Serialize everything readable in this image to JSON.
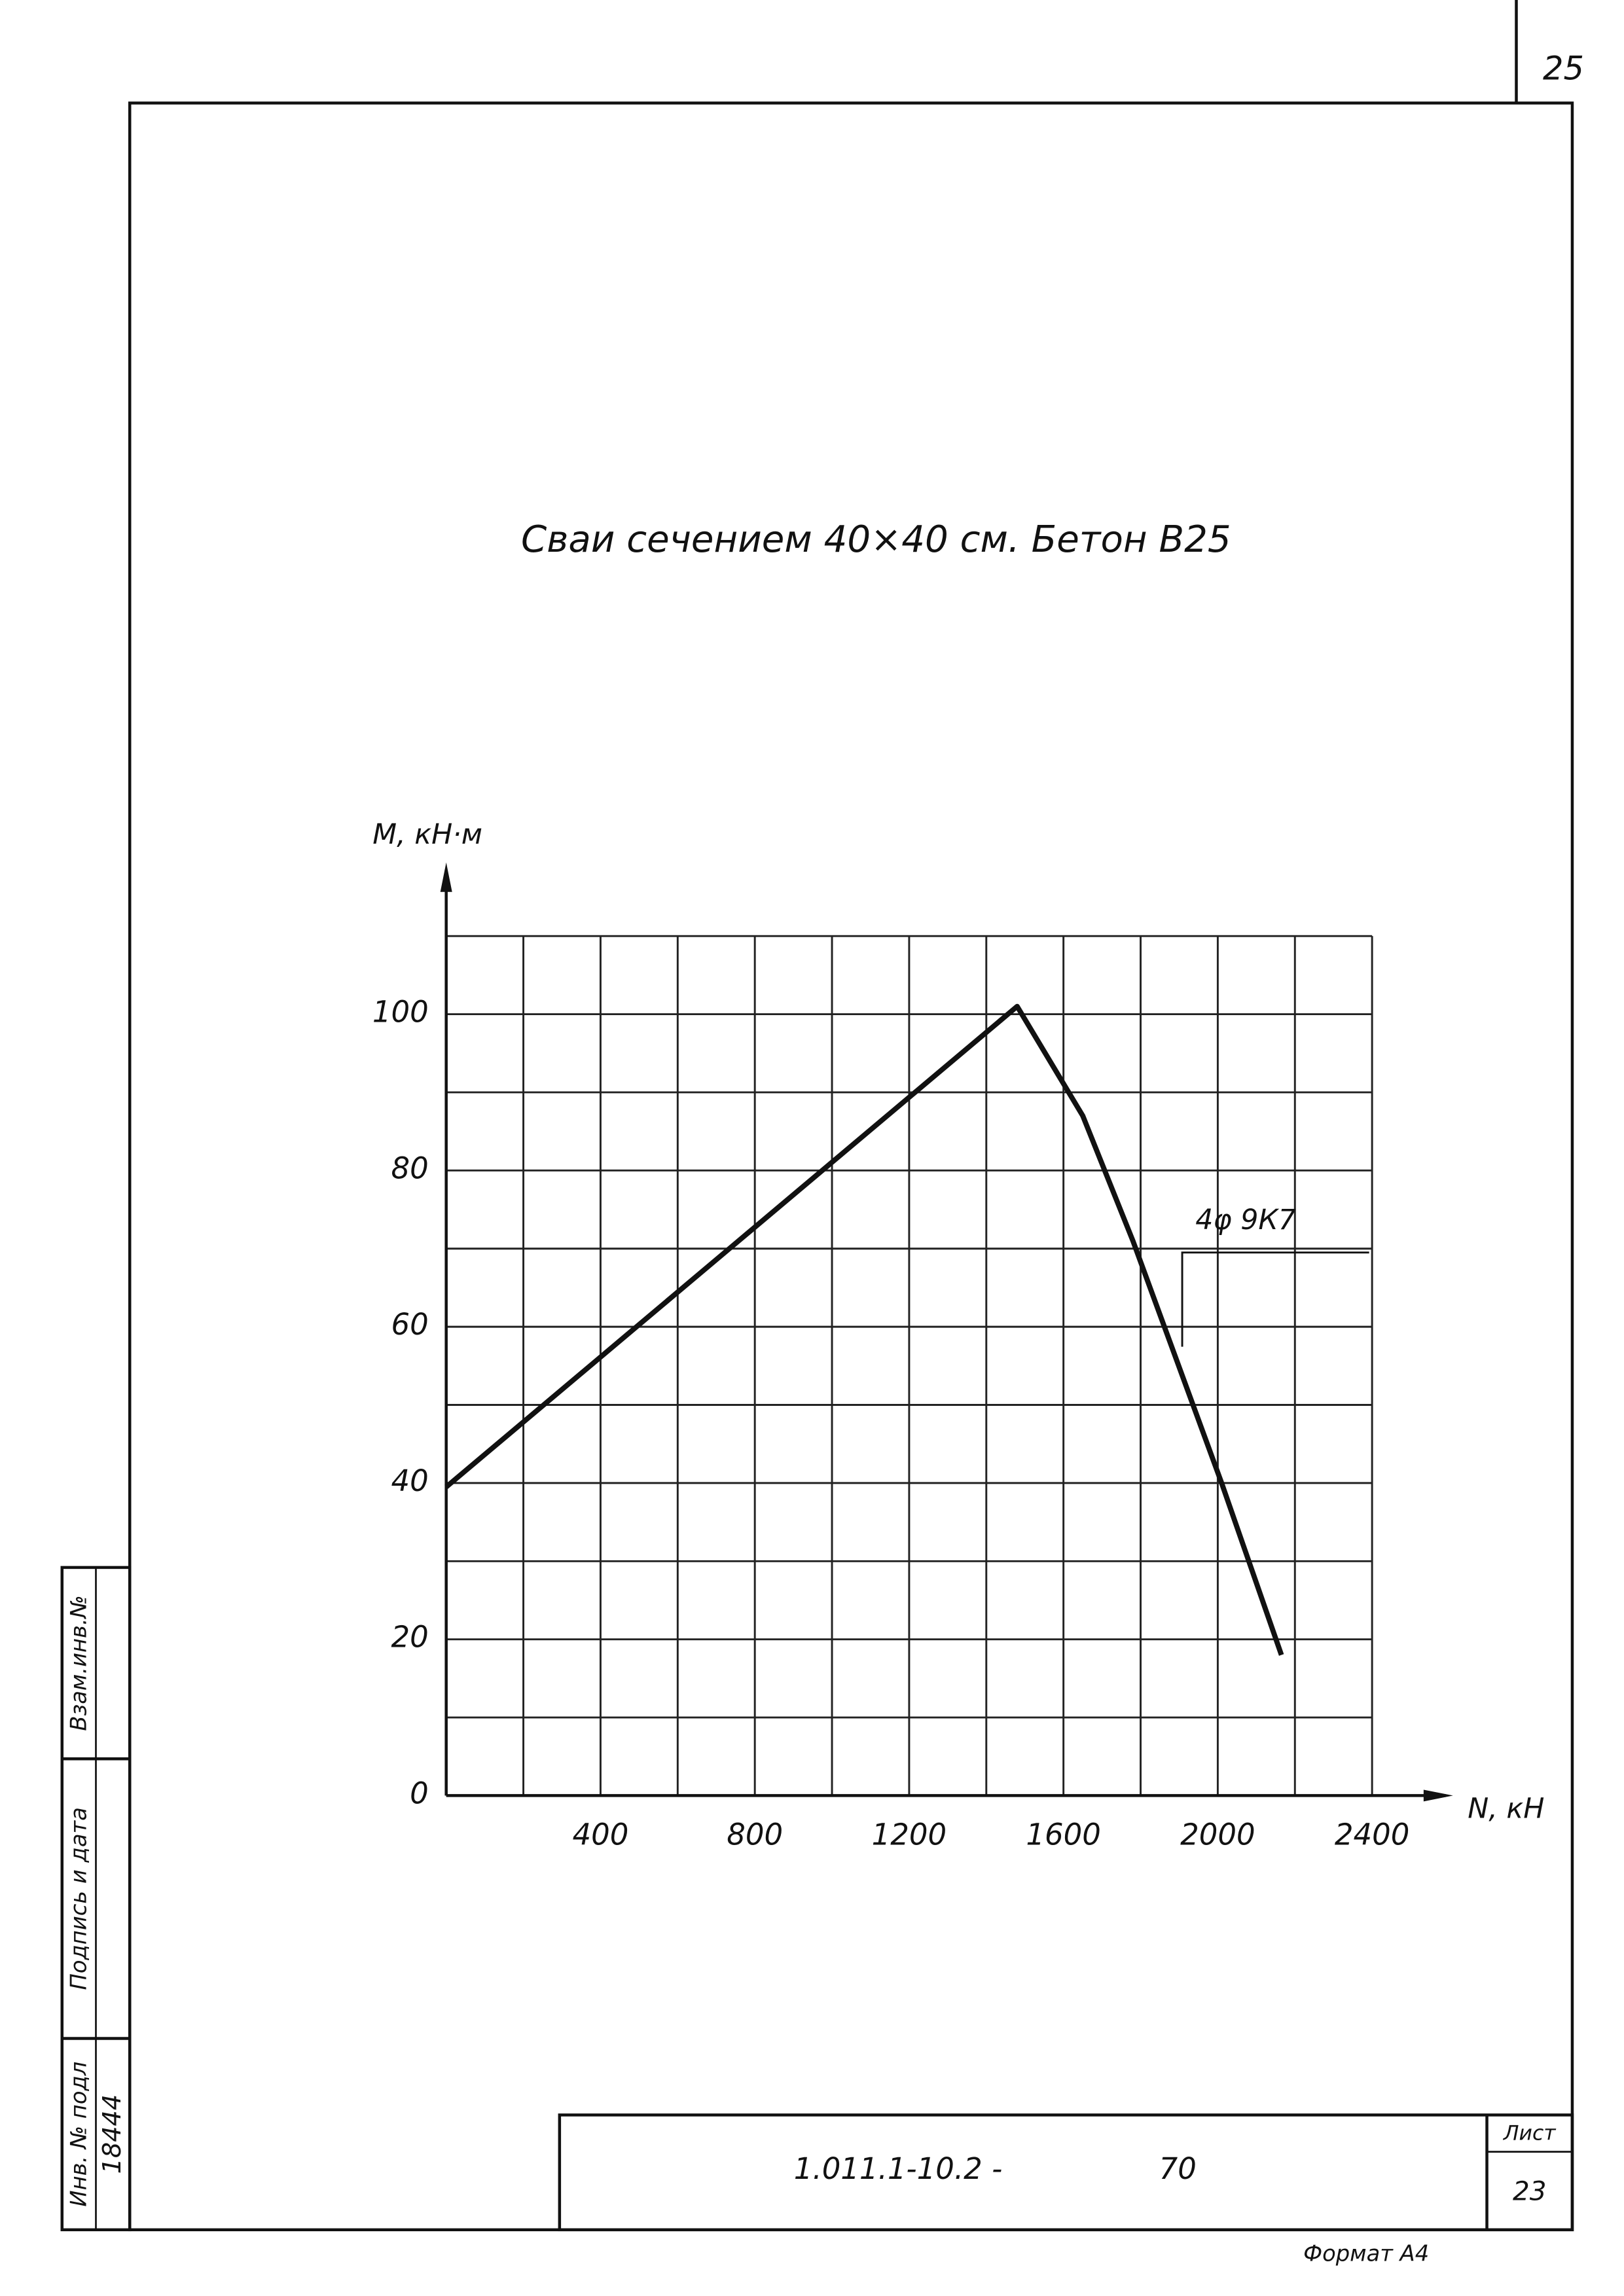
{
  "page_number": "25",
  "chart_data": {
    "type": "line",
    "title": "Сваи сечением 40×40 см. Бетон В25",
    "ylabel": "М, кН·м",
    "xlabel": "N, кН",
    "x": [
      0,
      1480,
      1650,
      1780,
      2010,
      2165
    ],
    "values": [
      39.5,
      101,
      87,
      71,
      40,
      18
    ],
    "color": "#111111",
    "xlim": [
      0,
      2400
    ],
    "ylim": [
      0,
      110
    ],
    "xticks": [
      400,
      800,
      1200,
      1600,
      2000,
      2400
    ],
    "yticks": [
      0,
      20,
      40,
      60,
      80,
      100
    ],
    "xgrid": [
      0,
      200,
      400,
      600,
      800,
      1000,
      1200,
      1400,
      1600,
      1800,
      2000,
      2200,
      2400
    ],
    "ygrid": [
      0,
      10,
      20,
      30,
      40,
      50,
      60,
      70,
      80,
      90,
      100,
      110
    ],
    "annotation": "4φ 9К7"
  },
  "side_stamp": {
    "inv_label": "Инв. № подл",
    "sign_label": "Подпись и дата",
    "replace_label": "Взам.инв.№",
    "inv_number": "18444"
  },
  "title_block": {
    "code": "1.011.1-10.2 -",
    "number": "70",
    "sheet_label": "Лист",
    "sheet": "23",
    "format": "Формат А4"
  }
}
